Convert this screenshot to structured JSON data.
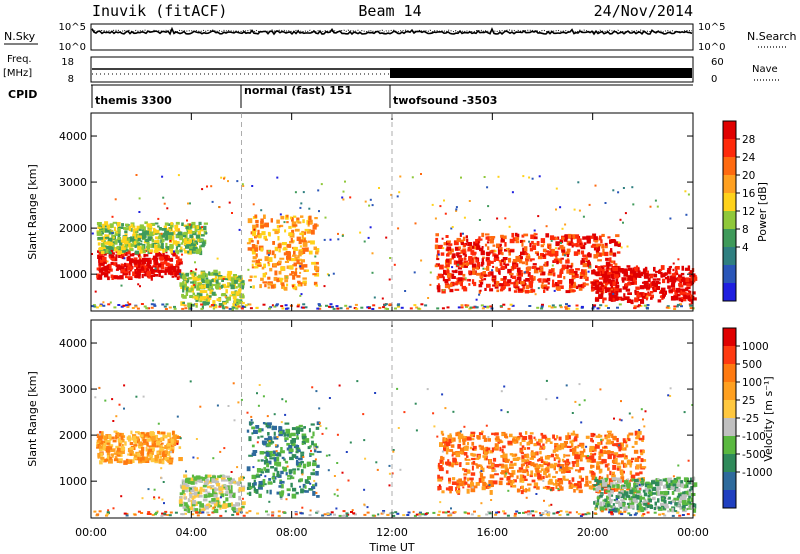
{
  "header": {
    "station": "Inuvik (fitACF)",
    "beam": "Beam 14",
    "date": "24/Nov/2014"
  },
  "top_panels": {
    "nsky_label": "N.Sky",
    "nsky_ticks": [
      "10^5",
      "10^0"
    ],
    "nsearch_label": "N.Search",
    "nsearch_ticks": [
      "10^5",
      "10^0"
    ],
    "freq_label": "Freq.",
    "freq_unit": "[MHz]",
    "freq_ticks": [
      "18",
      "8"
    ],
    "nave_label": "Nave",
    "nave_ticks": [
      "60",
      "0"
    ],
    "cpid_label": "CPID",
    "cpid_segments": [
      {
        "label": "themis 3300",
        "start": 0,
        "end": 6
      },
      {
        "label": "normal (fast) 151",
        "start": 6,
        "end": 12
      },
      {
        "label": "twofsound -3503",
        "start": 12,
        "end": 24
      }
    ]
  },
  "chart_data": [
    {
      "type": "heatmap",
      "title": "",
      "xlabel": "Time UT",
      "ylabel": "Slant Range [km]",
      "xlim": [
        0,
        24
      ],
      "ylim": [
        200,
        4500
      ],
      "x_ticks": [
        "00:00",
        "04:00",
        "08:00",
        "12:00",
        "16:00",
        "20:00",
        "00:00"
      ],
      "y_ticks": [
        1000,
        2000,
        3000,
        4000
      ],
      "colorbar": {
        "label": "Power [dB]",
        "ticks": [
          "28",
          "24",
          "20",
          "16",
          "12",
          "8",
          "4"
        ],
        "colors": [
          "#1f1fe0",
          "#2a56b8",
          "#2f7f80",
          "#3f9a5a",
          "#8fc83a",
          "#ffd21a",
          "#ffa020",
          "#ff6a10",
          "#ff2a0a",
          "#e00000"
        ]
      },
      "features": [
        {
          "t0": 0.2,
          "t1": 3.5,
          "r0": 950,
          "r1": 1550,
          "level": 9
        },
        {
          "t0": 0.2,
          "t1": 4.5,
          "r0": 1500,
          "r1": 2150,
          "level": 4
        },
        {
          "t0": 3.5,
          "t1": 6.0,
          "r0": 300,
          "r1": 1100,
          "level": 4
        },
        {
          "t0": 6.2,
          "t1": 9.0,
          "r0": 700,
          "r1": 2300,
          "level": 6
        },
        {
          "t0": 13.7,
          "t1": 21.0,
          "r0": 650,
          "r1": 1900,
          "level": 8
        },
        {
          "t0": 20.0,
          "t1": 24.0,
          "r0": 450,
          "r1": 1200,
          "level": 9
        }
      ]
    },
    {
      "type": "heatmap",
      "title": "",
      "xlabel": "Time UT",
      "ylabel": "Slant Range [km]",
      "xlim": [
        0,
        24
      ],
      "ylim": [
        200,
        4500
      ],
      "x_ticks": [
        "00:00",
        "04:00",
        "08:00",
        "12:00",
        "16:00",
        "20:00",
        "00:00"
      ],
      "y_ticks": [
        1000,
        2000,
        3000,
        4000
      ],
      "colorbar": {
        "label": "Velocity [m s⁻¹]",
        "ticks": [
          "1000",
          "500",
          "100",
          "25",
          "-25",
          "-100",
          "-500",
          "-1000"
        ],
        "colors": [
          "#2040c0",
          "#2e6a9c",
          "#2f8a5a",
          "#5ab840",
          "#c0c0c0",
          "#ffc840",
          "#ffa020",
          "#ff7a10",
          "#ff3a10",
          "#e00000"
        ]
      },
      "features": [
        {
          "t0": 0.2,
          "t1": 3.5,
          "r0": 1450,
          "r1": 2100,
          "level": 6
        },
        {
          "t0": 3.5,
          "t1": 6.0,
          "r0": 400,
          "r1": 1150,
          "level": 4
        },
        {
          "t0": 6.2,
          "t1": 9.0,
          "r0": 700,
          "r1": 2300,
          "level": 2
        },
        {
          "t0": 13.8,
          "t1": 22.0,
          "r0": 800,
          "r1": 2100,
          "level": 7
        },
        {
          "t0": 20.0,
          "t1": 24.0,
          "r0": 400,
          "r1": 1100,
          "level": 3
        }
      ]
    }
  ]
}
